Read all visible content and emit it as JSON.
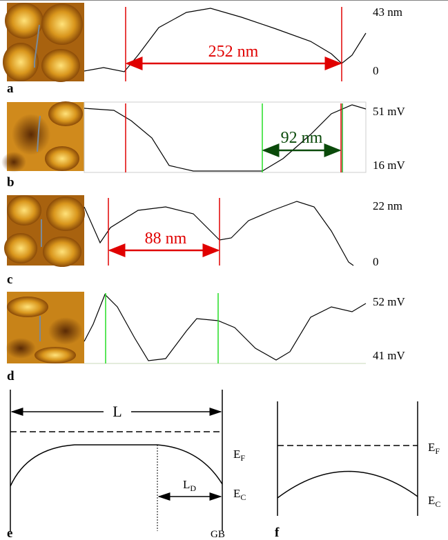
{
  "panels": {
    "a": {
      "label": "a",
      "top": "43 nm",
      "bottom": "0",
      "distance": "252 nm"
    },
    "b": {
      "label": "b",
      "top": "51 mV",
      "bottom": "16 mV",
      "distance": "92 nm"
    },
    "c": {
      "label": "c",
      "top": "22 nm",
      "bottom": "0",
      "distance": "88 nm"
    },
    "d": {
      "label": "d",
      "top": "52 mV",
      "bottom": "41 mV"
    },
    "e": {
      "label": "e",
      "length": "L",
      "fermi": {
        "main": "E",
        "sub": "F"
      },
      "conduction": {
        "main": "E",
        "sub": "C"
      },
      "depletion": {
        "main": "L",
        "sub": "D"
      },
      "boundary": "GB"
    },
    "f": {
      "label": "f",
      "fermi": {
        "main": "E",
        "sub": "F"
      },
      "conduction": {
        "main": "E",
        "sub": "C"
      }
    }
  }
}
